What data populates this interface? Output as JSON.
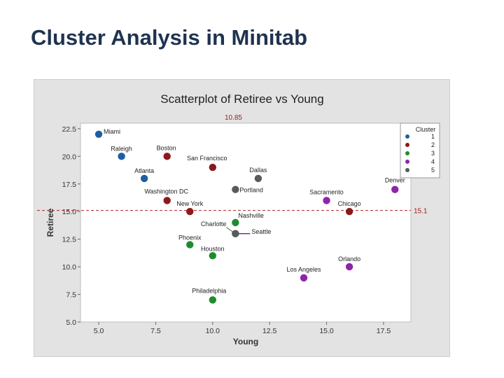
{
  "slide": {
    "title": "Cluster Analysis in Minitab"
  },
  "colors": {
    "1": "#1f5fa0",
    "2": "#8b1a1a",
    "3": "#1e8c2e",
    "4": "#8e24aa",
    "5": "#5a5a5a",
    "ref": "#b22222"
  },
  "chart_data": {
    "type": "scatter",
    "title": "Scatterplot of Retiree vs Young",
    "xlabel": "Young",
    "ylabel": "Retiree",
    "xlim": [
      4.2,
      18.7
    ],
    "ylim": [
      5.0,
      23.0
    ],
    "xticks": [
      5.0,
      7.5,
      10.0,
      12.5,
      15.0,
      17.5
    ],
    "xtick_labels": [
      "5.0",
      "7.5",
      "10.0",
      "12.5",
      "15.0",
      "17.5"
    ],
    "yticks": [
      5.0,
      7.5,
      10.0,
      12.5,
      15.0,
      17.5,
      20.0,
      22.5
    ],
    "ytick_labels": [
      "5.0",
      "7.5",
      "10.0",
      "12.5",
      "15.0",
      "17.5",
      "20.0",
      "22.5"
    ],
    "legend": {
      "title": "Cluster",
      "entries": [
        "1",
        "2",
        "3",
        "4",
        "5"
      ],
      "position": "right"
    },
    "reference_lines": [
      {
        "axis": "y",
        "value": 15.1,
        "label": "15.1"
      },
      {
        "axis": "x",
        "value": 10.85,
        "label": "10.85"
      }
    ],
    "points": [
      {
        "label": "Miami",
        "x": 5.0,
        "y": 22.0,
        "cluster": "1"
      },
      {
        "label": "Raleigh",
        "x": 6.0,
        "y": 20.0,
        "cluster": "1"
      },
      {
        "label": "Atlanta",
        "x": 7.0,
        "y": 18.0,
        "cluster": "1"
      },
      {
        "label": "Boston",
        "x": 8.0,
        "y": 20.0,
        "cluster": "2"
      },
      {
        "label": "San Francisco",
        "x": 10.0,
        "y": 19.0,
        "cluster": "2"
      },
      {
        "label": "Washington DC",
        "x": 8.0,
        "y": 16.0,
        "cluster": "2"
      },
      {
        "label": "New York",
        "x": 9.0,
        "y": 15.0,
        "cluster": "2"
      },
      {
        "label": "Chicago",
        "x": 16.0,
        "y": 15.0,
        "cluster": "2"
      },
      {
        "label": "Dallas",
        "x": 12.0,
        "y": 18.0,
        "cluster": "5"
      },
      {
        "label": "Portland",
        "x": 11.0,
        "y": 17.0,
        "cluster": "5"
      },
      {
        "label": "Nashville",
        "x": 11.0,
        "y": 14.0,
        "cluster": "3"
      },
      {
        "label": "Charlotte",
        "x": 11.0,
        "y": 13.0,
        "cluster": "3"
      },
      {
        "label": "Seattle",
        "x": 11.0,
        "y": 13.0,
        "cluster": "5"
      },
      {
        "label": "Phoenix",
        "x": 9.0,
        "y": 12.0,
        "cluster": "3"
      },
      {
        "label": "Houston",
        "x": 10.0,
        "y": 11.0,
        "cluster": "3"
      },
      {
        "label": "Philadelphia",
        "x": 10.0,
        "y": 7.0,
        "cluster": "3"
      },
      {
        "label": "Sacramento",
        "x": 15.0,
        "y": 16.0,
        "cluster": "4"
      },
      {
        "label": "Denver",
        "x": 18.0,
        "y": 17.0,
        "cluster": "4"
      },
      {
        "label": "Orlando",
        "x": 16.0,
        "y": 10.0,
        "cluster": "4"
      },
      {
        "label": "Los Angeles",
        "x": 14.0,
        "y": 9.0,
        "cluster": "4"
      }
    ]
  }
}
